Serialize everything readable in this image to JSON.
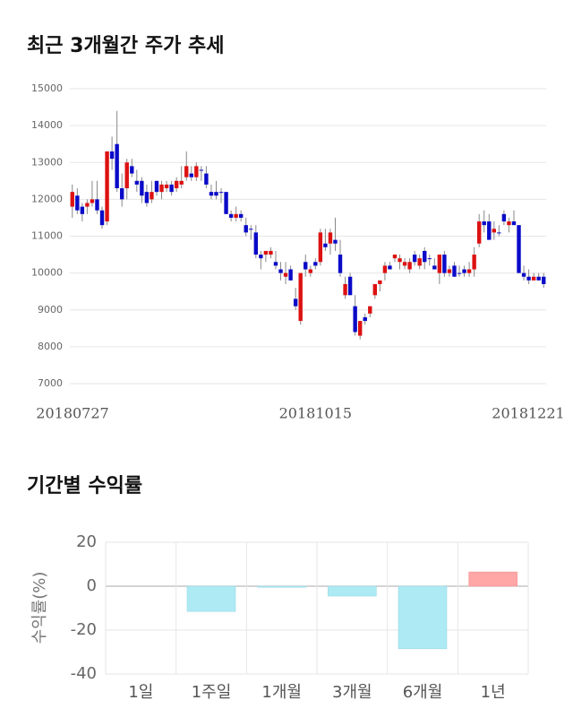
{
  "chart_data": [
    {
      "type": "candlestick",
      "title": "최근 3개월간 주가 추세",
      "categories": [
        "20180727",
        null,
        null,
        null,
        null,
        null,
        null,
        null,
        null,
        null,
        null,
        null,
        null,
        null,
        null,
        null,
        null,
        null,
        null,
        null,
        null,
        null,
        null,
        null,
        null,
        null,
        null,
        null,
        null,
        null,
        null,
        null,
        null,
        null,
        null,
        null,
        null,
        null,
        null,
        null,
        null,
        null,
        null,
        null,
        null,
        null,
        null,
        null,
        null,
        "20181015",
        null,
        null,
        null,
        null,
        null,
        null,
        null,
        null,
        null,
        null,
        null,
        null,
        null,
        null,
        null,
        null,
        null,
        null,
        null,
        null,
        null,
        null,
        null,
        null,
        null,
        null,
        null,
        null,
        null,
        null,
        null,
        null,
        null,
        null,
        null,
        null,
        null,
        null,
        null,
        null,
        null,
        null,
        null,
        null,
        null,
        "20181221"
      ],
      "open": [
        11800,
        12100,
        11800,
        11800,
        11900,
        12000,
        11700,
        11400,
        13300,
        13500,
        12300,
        12300,
        12900,
        12500,
        12500,
        12200,
        12000,
        12500,
        12200,
        12300,
        12400,
        12300,
        12400,
        12600,
        12700,
        12600,
        12800,
        12700,
        12200,
        12200,
        12200,
        12200,
        11600,
        11500,
        11600,
        11300,
        11200,
        11100,
        10500,
        10500,
        10500,
        10300,
        10100,
        9900,
        10100,
        9300,
        8700,
        10300,
        10000,
        10300,
        10300,
        10800,
        10800,
        10900,
        10500,
        9400,
        9900,
        9100,
        8300,
        8800,
        8900,
        9400,
        9700,
        10000,
        10200,
        10400,
        10300,
        10200,
        10100,
        10500,
        10200,
        10600,
        10400,
        10200,
        10000,
        10500,
        10000,
        10200,
        10000,
        10100,
        10000,
        10100,
        10800,
        11400,
        11400,
        11100,
        11100,
        11600,
        11300,
        11400,
        11300,
        10000,
        9900,
        9800,
        9900,
        9900
      ],
      "high": [
        12400,
        12300,
        11900,
        12000,
        12500,
        12500,
        11800,
        13300,
        13700,
        14400,
        12700,
        13100,
        13100,
        12800,
        12600,
        12400,
        12500,
        12500,
        12500,
        12500,
        12500,
        12600,
        12900,
        13300,
        12900,
        13000,
        12900,
        12900,
        12400,
        12500,
        12300,
        12200,
        11700,
        11800,
        11700,
        11500,
        11300,
        11300,
        10600,
        10600,
        10700,
        10600,
        10300,
        10300,
        10200,
        9600,
        10000,
        10500,
        10200,
        10400,
        11200,
        11200,
        11200,
        11500,
        10900,
        9900,
        10000,
        9400,
        8700,
        8900,
        9100,
        9700,
        9800,
        10300,
        10300,
        10500,
        10500,
        10400,
        10400,
        10600,
        10500,
        10700,
        10500,
        10400,
        10500,
        10600,
        10200,
        10300,
        10200,
        10200,
        10300,
        10700,
        11600,
        11700,
        11600,
        11400,
        11300,
        11700,
        11500,
        11700,
        11300,
        10200,
        10100,
        10000,
        10000,
        10000
      ],
      "low": [
        11500,
        11600,
        11400,
        11600,
        11800,
        11600,
        11200,
        11300,
        12800,
        12200,
        11800,
        12000,
        12600,
        12200,
        11900,
        11800,
        11900,
        12100,
        12000,
        12200,
        12100,
        12200,
        12300,
        12500,
        12500,
        12500,
        12500,
        12300,
        12000,
        12000,
        11900,
        11600,
        11400,
        11400,
        11400,
        11000,
        10900,
        10400,
        10100,
        10300,
        10400,
        10100,
        9800,
        9700,
        9800,
        9000,
        8600,
        9900,
        9900,
        10100,
        10200,
        10600,
        10500,
        10600,
        9900,
        9300,
        9400,
        8300,
        8200,
        8600,
        8800,
        9300,
        9500,
        9800,
        10100,
        10300,
        10100,
        10100,
        10000,
        10200,
        10100,
        10100,
        10200,
        10100,
        9700,
        9900,
        9900,
        9900,
        9900,
        9900,
        9900,
        9900,
        10700,
        11100,
        10900,
        10900,
        11000,
        11300,
        11100,
        11300,
        10000,
        9800,
        9700,
        9800,
        9800,
        9600
      ],
      "close": [
        12200,
        11700,
        11600,
        11900,
        12000,
        11700,
        11300,
        13300,
        13100,
        12300,
        12000,
        13000,
        12700,
        12400,
        12100,
        11900,
        12200,
        12200,
        12400,
        12400,
        12200,
        12500,
        12500,
        12900,
        12600,
        12900,
        12800,
        12400,
        12100,
        12100,
        12200,
        11600,
        11500,
        11600,
        11500,
        11100,
        11200,
        10500,
        10400,
        10600,
        10600,
        10200,
        10000,
        10000,
        9800,
        9100,
        10000,
        10100,
        10100,
        10200,
        11100,
        10700,
        11100,
        10800,
        10000,
        9700,
        9400,
        8400,
        8700,
        8700,
        9100,
        9700,
        9800,
        10200,
        10100,
        10500,
        10400,
        10300,
        10300,
        10300,
        10400,
        10300,
        10400,
        10100,
        10500,
        10000,
        10100,
        9900,
        10000,
        10000,
        10100,
        10500,
        11400,
        11300,
        10900,
        11200,
        11100,
        11400,
        11400,
        11300,
        10000,
        9900,
        9800,
        9900,
        9800,
        9700
      ],
      "up_color": "#dd1111",
      "down_color": "#0a0ac8",
      "ylim": [
        7000,
        15000
      ],
      "yticks": [
        7000,
        8000,
        9000,
        10000,
        11000,
        12000,
        13000,
        14000,
        15000
      ],
      "grid": true
    },
    {
      "type": "bar",
      "title": "기간별 수익률",
      "ylabel": "수익률(%)",
      "categories": [
        "1일",
        "1주일",
        "1개월",
        "3개월",
        "6개월",
        "1년"
      ],
      "values": [
        0,
        -11.5,
        -0.5,
        -4.5,
        -28.5,
        6.5
      ],
      "colors": [
        "#aeeaf4",
        "#aeeaf4",
        "#aeeaf4",
        "#aeeaf4",
        "#aeeaf4",
        "#ffa6a6"
      ],
      "ylim": [
        -40,
        20
      ],
      "yticks": [
        -40,
        -20,
        0,
        20
      ],
      "grid": true
    }
  ]
}
